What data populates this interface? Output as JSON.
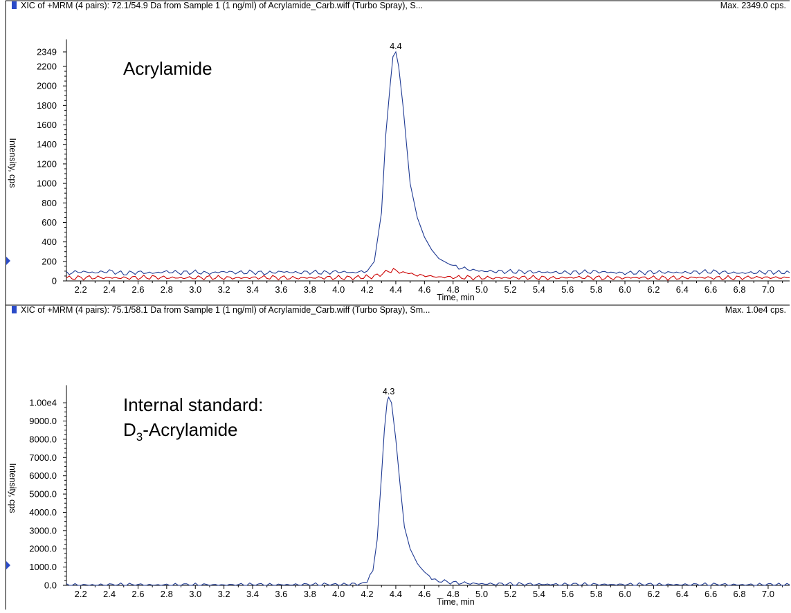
{
  "chart_data": [
    {
      "type": "line",
      "header": "XIC of +MRM (4 pairs): 72.1/54.9 Da  from Sample 1 (1 ng/ml) of Acrylamide_Carb.wiff (Turbo Spray), S...",
      "max_label": "Max. 2349.0 cps.",
      "annotation": "Acrylamide",
      "annotation_sub": "",
      "annotation_line2": "",
      "peak_label": "4.4",
      "peak": {
        "x": 4.4,
        "y": 2349
      },
      "xlabel": "Time, min",
      "ylabel": "Intensity, cps",
      "xlim": [
        2.1,
        7.15
      ],
      "ylim": [
        0,
        2420
      ],
      "x_ticks": [
        "2.2",
        "2.4",
        "2.6",
        "2.8",
        "3.0",
        "3.2",
        "3.4",
        "3.6",
        "3.8",
        "4.0",
        "4.2",
        "4.4",
        "4.6",
        "4.8",
        "5.0",
        "5.2",
        "5.4",
        "5.6",
        "5.8",
        "6.0",
        "6.2",
        "6.4",
        "6.6",
        "6.8",
        "7.0"
      ],
      "y_ticks": [
        {
          "value": 0,
          "label": "0"
        },
        {
          "value": 200,
          "label": "200"
        },
        {
          "value": 400,
          "label": "400"
        },
        {
          "value": 600,
          "label": "600"
        },
        {
          "value": 800,
          "label": "800"
        },
        {
          "value": 1000,
          "label": "1000"
        },
        {
          "value": 1200,
          "label": "1200"
        },
        {
          "value": 1400,
          "label": "1400"
        },
        {
          "value": 1600,
          "label": "1600"
        },
        {
          "value": 1800,
          "label": "1800"
        },
        {
          "value": 2000,
          "label": "2000"
        },
        {
          "value": 2200,
          "label": "2200"
        },
        {
          "value": 2349,
          "label": "2349"
        }
      ],
      "series": [
        {
          "color": "#1f3a93",
          "x": [
            2.1,
            2.2,
            2.3,
            2.4,
            2.5,
            2.6,
            2.7,
            2.8,
            2.9,
            3.0,
            3.1,
            3.2,
            3.3,
            3.4,
            3.5,
            3.6,
            3.7,
            3.8,
            3.9,
            4.0,
            4.1,
            4.2,
            4.25,
            4.3,
            4.33,
            4.36,
            4.38,
            4.4,
            4.42,
            4.45,
            4.5,
            4.55,
            4.6,
            4.65,
            4.7,
            4.8,
            4.9,
            5.0,
            5.2,
            5.4,
            5.6,
            5.8,
            6.0,
            6.2,
            6.4,
            6.6,
            6.8,
            7.0,
            7.15
          ],
          "y": [
            80,
            95,
            85,
            100,
            75,
            90,
            80,
            95,
            85,
            90,
            80,
            95,
            85,
            90,
            80,
            95,
            85,
            90,
            85,
            95,
            85,
            100,
            200,
            700,
            1500,
            2000,
            2300,
            2349,
            2200,
            1800,
            1000,
            650,
            450,
            320,
            230,
            150,
            120,
            100,
            95,
            90,
            85,
            95,
            80,
            90,
            85,
            95,
            80,
            90,
            85
          ]
        },
        {
          "color": "#cc0000",
          "x": [
            2.1,
            2.3,
            2.5,
            2.7,
            2.9,
            3.1,
            3.3,
            3.5,
            3.7,
            3.9,
            4.1,
            4.25,
            4.35,
            4.4,
            4.45,
            4.55,
            4.7,
            4.9,
            5.1,
            5.3,
            5.5,
            5.7,
            5.9,
            6.1,
            6.3,
            6.5,
            6.7,
            6.9,
            7.15
          ],
          "y": [
            30,
            35,
            30,
            38,
            30,
            35,
            30,
            36,
            30,
            34,
            32,
            45,
            100,
            110,
            90,
            60,
            40,
            35,
            30,
            35,
            30,
            36,
            30,
            34,
            30,
            35,
            30,
            36,
            32
          ]
        }
      ]
    },
    {
      "type": "line",
      "header": "XIC of +MRM (4 pairs): 75.1/58.1 Da  from Sample 1 (1 ng/ml) of Acrylamide_Carb.wiff (Turbo Spray), Sm...",
      "max_label": "Max. 1.0e4 cps.",
      "annotation": "Internal standard:",
      "annotation_line2": "D",
      "annotation_sub": "3",
      "annotation_line2_rest": "-Acrylamide",
      "peak_label": "4.3",
      "peak": {
        "x": 4.35,
        "y": 10300
      },
      "xlabel": "Time, min",
      "ylabel": "Intensity, cps",
      "xlim": [
        2.1,
        7.15
      ],
      "ylim": [
        0,
        10650
      ],
      "x_ticks": [
        "2.2",
        "2.4",
        "2.6",
        "2.8",
        "3.0",
        "3.2",
        "3.4",
        "3.6",
        "3.8",
        "4.0",
        "4.2",
        "4.4",
        "4.6",
        "4.8",
        "5.0",
        "5.2",
        "5.4",
        "5.6",
        "5.8",
        "6.0",
        "6.2",
        "6.4",
        "6.6",
        "6.8",
        "7.0"
      ],
      "y_ticks": [
        {
          "value": 0,
          "label": "0.0"
        },
        {
          "value": 1000,
          "label": "1000.0"
        },
        {
          "value": 2000,
          "label": "2000.0"
        },
        {
          "value": 3000,
          "label": "3000.0"
        },
        {
          "value": 4000,
          "label": "4000.0"
        },
        {
          "value": 5000,
          "label": "5000.0"
        },
        {
          "value": 6000,
          "label": "6000.0"
        },
        {
          "value": 7000,
          "label": "7000.0"
        },
        {
          "value": 8000,
          "label": "8000.0"
        },
        {
          "value": 9000,
          "label": "9000.0"
        },
        {
          "value": 10000,
          "label": "1.00e4"
        }
      ],
      "series": [
        {
          "color": "#1f3a93",
          "x": [
            2.1,
            2.5,
            3.0,
            3.5,
            4.0,
            4.15,
            4.2,
            4.24,
            4.27,
            4.3,
            4.32,
            4.34,
            4.35,
            4.37,
            4.4,
            4.43,
            4.46,
            4.5,
            4.55,
            4.6,
            4.65,
            4.7,
            4.8,
            5.0,
            5.5,
            6.0,
            6.5,
            7.0,
            7.15
          ],
          "y": [
            20,
            25,
            20,
            30,
            40,
            80,
            200,
            800,
            2500,
            6000,
            8500,
            10100,
            10300,
            10000,
            8000,
            5500,
            3200,
            2000,
            1200,
            700,
            400,
            250,
            150,
            80,
            50,
            40,
            35,
            30,
            30
          ]
        }
      ]
    }
  ]
}
